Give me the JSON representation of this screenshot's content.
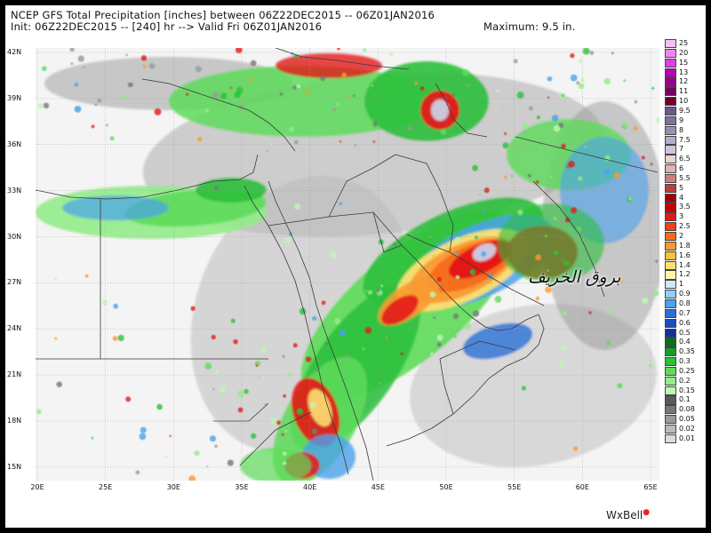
{
  "header": {
    "title_line1": "NCEP GFS Total Precipitation [inches] between 06Z22DEC2015 -- 06Z01JAN2016",
    "title_line2": "Init: 06Z22DEC2015 -- [240] hr --> Valid Fri 06Z01JAN2016",
    "maximum": "Maximum: 9.5 in."
  },
  "map": {
    "lat_labels": [
      "42N",
      "39N",
      "36N",
      "33N",
      "30N",
      "27N",
      "24N",
      "21N",
      "18N",
      "15N"
    ],
    "lon_labels": [
      "20E",
      "25E",
      "30E",
      "35E",
      "40E",
      "45E",
      "50E",
      "55E",
      "60E",
      "65E"
    ]
  },
  "legend": {
    "items": [
      {
        "label": "25",
        "color": "#f5c0f5"
      },
      {
        "label": "20",
        "color": "#ee88ee"
      },
      {
        "label": "15",
        "color": "#e040e0"
      },
      {
        "label": "13",
        "color": "#b800b8"
      },
      {
        "label": "12",
        "color": "#9a0090"
      },
      {
        "label": "11",
        "color": "#7a0060"
      },
      {
        "label": "10",
        "color": "#6e0030"
      },
      {
        "label": "9.5",
        "color": "#6a5a8c"
      },
      {
        "label": "9",
        "color": "#7e72a0"
      },
      {
        "label": "8",
        "color": "#9a90b6"
      },
      {
        "label": "7.5",
        "color": "#b4acc8"
      },
      {
        "label": "7",
        "color": "#ccc6da"
      },
      {
        "label": "6.5",
        "color": "#ead4d4"
      },
      {
        "label": "6",
        "color": "#e0b4b4"
      },
      {
        "label": "5.5",
        "color": "#d08080"
      },
      {
        "label": "5",
        "color": "#b84040"
      },
      {
        "label": "4",
        "color": "#a00000"
      },
      {
        "label": "3.5",
        "color": "#c80000"
      },
      {
        "label": "3",
        "color": "#e41818"
      },
      {
        "label": "2.5",
        "color": "#f04020"
      },
      {
        "label": "2",
        "color": "#f86a1a"
      },
      {
        "label": "1.8",
        "color": "#fa9a30"
      },
      {
        "label": "1.6",
        "color": "#fcc040"
      },
      {
        "label": "1.4",
        "color": "#fde070"
      },
      {
        "label": "1.2",
        "color": "#fff4a8"
      },
      {
        "label": "1",
        "color": "#c8ecf8"
      },
      {
        "label": "0.9",
        "color": "#90d0f4"
      },
      {
        "label": "0.8",
        "color": "#4aa2ec"
      },
      {
        "label": "0.7",
        "color": "#2a70d8"
      },
      {
        "label": "0.6",
        "color": "#1c4cc0"
      },
      {
        "label": "0.5",
        "color": "#18309a"
      },
      {
        "label": "0.4",
        "color": "#0a6e1a"
      },
      {
        "label": "0.35",
        "color": "#1a9c2a"
      },
      {
        "label": "0.3",
        "color": "#2cc03c"
      },
      {
        "label": "0.25",
        "color": "#5edc5a"
      },
      {
        "label": "0.2",
        "color": "#92ec88"
      },
      {
        "label": "0.15",
        "color": "#bef6b4"
      },
      {
        "label": "0.1",
        "color": "#5a5a5a"
      },
      {
        "label": "0.08",
        "color": "#787878"
      },
      {
        "label": "0.05",
        "color": "#9a9a9a"
      },
      {
        "label": "0.02",
        "color": "#bcbcbc"
      },
      {
        "label": "0.01",
        "color": "#dcdcdc"
      }
    ]
  },
  "overlay_text": "بروق الخريف",
  "brand": "WxBell"
}
